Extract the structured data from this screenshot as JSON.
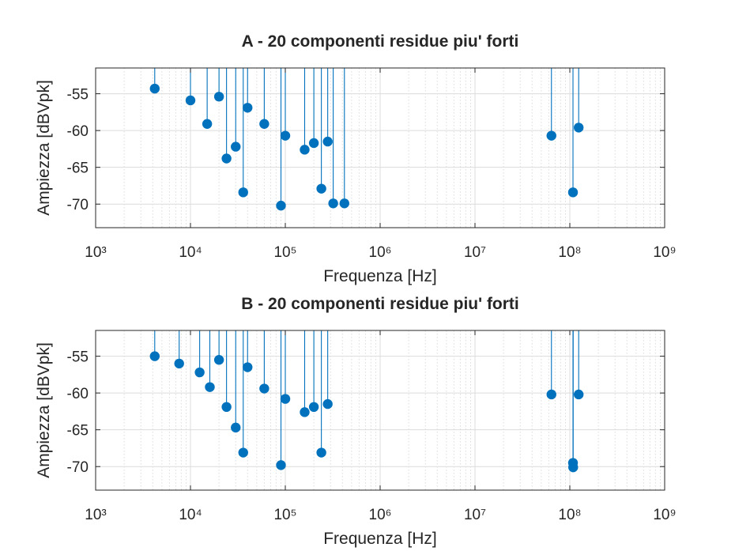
{
  "colors": {
    "series": "#0072BD",
    "axis": "#262626",
    "grid": "#dcdcdc",
    "background": "#ffffff"
  },
  "chart_data": [
    {
      "type": "stem",
      "title": "A - 20 componenti residue piu' forti",
      "xlabel": "Frequenza [Hz]",
      "ylabel": "Ampiezza [dBVpk]",
      "xscale": "log",
      "xlim": [
        1000,
        1000000000
      ],
      "ylim": [
        -73.2,
        -51.5
      ],
      "yticks": [
        -55,
        -60,
        -65,
        -70
      ],
      "xtick_labels": [
        "10³",
        "10⁴",
        "10⁵",
        "10⁶",
        "10⁷",
        "10⁸",
        "10⁹"
      ],
      "grid": true,
      "minor_grid": true,
      "x": [
        4200,
        10000,
        15000,
        20000,
        24000,
        30000,
        36000,
        40000,
        60000,
        90000,
        100000,
        160000,
        200000,
        240000,
        280000,
        320000,
        420000,
        64000000,
        108000000,
        124000000
      ],
      "y": [
        -54.3,
        -55.9,
        -59.1,
        -55.4,
        -63.8,
        -62.2,
        -68.4,
        -56.9,
        -59.1,
        -70.2,
        -60.7,
        -62.6,
        -61.7,
        -67.9,
        -61.5,
        -69.9,
        -69.9,
        -60.7,
        -68.4,
        -59.6
      ]
    },
    {
      "type": "stem",
      "title": "B - 20 componenti residue piu' forti",
      "xlabel": "Frequenza [Hz]",
      "ylabel": "Ampiezza [dBVpk]",
      "xscale": "log",
      "xlim": [
        1000,
        1000000000
      ],
      "ylim": [
        -73.2,
        -51.5
      ],
      "yticks": [
        -55,
        -60,
        -65,
        -70
      ],
      "xtick_labels": [
        "10³",
        "10⁴",
        "10⁵",
        "10⁶",
        "10⁷",
        "10⁸",
        "10⁹"
      ],
      "grid": true,
      "minor_grid": true,
      "x": [
        4200,
        7600,
        12500,
        16000,
        20000,
        24000,
        30000,
        36000,
        40000,
        60000,
        90000,
        100000,
        160000,
        200000,
        240000,
        280000,
        64000000,
        108000000,
        108500000,
        124000000
      ],
      "y": [
        -55.0,
        -56.0,
        -57.2,
        -59.2,
        -55.5,
        -61.9,
        -64.7,
        -68.1,
        -56.5,
        -59.4,
        -69.8,
        -60.8,
        -62.6,
        -61.9,
        -68.1,
        -61.5,
        -60.2,
        -69.5,
        -70.1,
        -60.2
      ]
    }
  ]
}
